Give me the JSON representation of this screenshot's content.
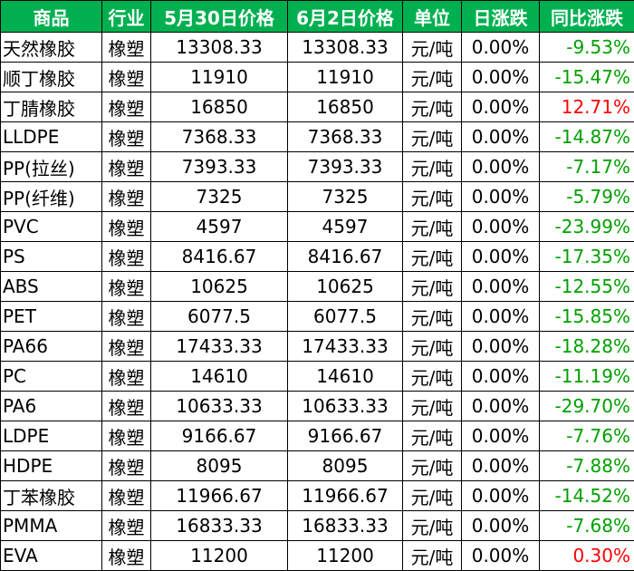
{
  "table": {
    "headers": [
      "商品",
      "行业",
      "5月30日价格",
      "6月2日价格",
      "单位",
      "日涨跌",
      "同比涨跌"
    ],
    "colors": {
      "header_bg": "#00b050",
      "negative": "#00a000",
      "positive": "#ff0000"
    },
    "rows": [
      {
        "name": "天然橡胶",
        "industry": "橡塑",
        "price_0530": "13308.33",
        "price_0602": "13308.33",
        "unit": "元/吨",
        "daily": "0.00%",
        "yoy": "-9.53%",
        "dir": "neg"
      },
      {
        "name": "顺丁橡胶",
        "industry": "橡塑",
        "price_0530": "11910",
        "price_0602": "11910",
        "unit": "元/吨",
        "daily": "0.00%",
        "yoy": "-15.47%",
        "dir": "neg"
      },
      {
        "name": "丁腈橡胶",
        "industry": "橡塑",
        "price_0530": "16850",
        "price_0602": "16850",
        "unit": "元/吨",
        "daily": "0.00%",
        "yoy": "12.71%",
        "dir": "pos"
      },
      {
        "name": "LLDPE",
        "industry": "橡塑",
        "price_0530": "7368.33",
        "price_0602": "7368.33",
        "unit": "元/吨",
        "daily": "0.00%",
        "yoy": "-14.87%",
        "dir": "neg"
      },
      {
        "name": "PP(拉丝)",
        "industry": "橡塑",
        "price_0530": "7393.33",
        "price_0602": "7393.33",
        "unit": "元/吨",
        "daily": "0.00%",
        "yoy": "-7.17%",
        "dir": "neg"
      },
      {
        "name": "PP(纤维)",
        "industry": "橡塑",
        "price_0530": "7325",
        "price_0602": "7325",
        "unit": "元/吨",
        "daily": "0.00%",
        "yoy": "-5.79%",
        "dir": "neg"
      },
      {
        "name": "PVC",
        "industry": "橡塑",
        "price_0530": "4597",
        "price_0602": "4597",
        "unit": "元/吨",
        "daily": "0.00%",
        "yoy": "-23.99%",
        "dir": "neg"
      },
      {
        "name": "PS",
        "industry": "橡塑",
        "price_0530": "8416.67",
        "price_0602": "8416.67",
        "unit": "元/吨",
        "daily": "0.00%",
        "yoy": "-17.35%",
        "dir": "neg"
      },
      {
        "name": "ABS",
        "industry": "橡塑",
        "price_0530": "10625",
        "price_0602": "10625",
        "unit": "元/吨",
        "daily": "0.00%",
        "yoy": "-12.55%",
        "dir": "neg"
      },
      {
        "name": "PET",
        "industry": "橡塑",
        "price_0530": "6077.5",
        "price_0602": "6077.5",
        "unit": "元/吨",
        "daily": "0.00%",
        "yoy": "-15.85%",
        "dir": "neg"
      },
      {
        "name": "PA66",
        "industry": "橡塑",
        "price_0530": "17433.33",
        "price_0602": "17433.33",
        "unit": "元/吨",
        "daily": "0.00%",
        "yoy": "-18.28%",
        "dir": "neg"
      },
      {
        "name": "PC",
        "industry": "橡塑",
        "price_0530": "14610",
        "price_0602": "14610",
        "unit": "元/吨",
        "daily": "0.00%",
        "yoy": "-11.19%",
        "dir": "neg"
      },
      {
        "name": "PA6",
        "industry": "橡塑",
        "price_0530": "10633.33",
        "price_0602": "10633.33",
        "unit": "元/吨",
        "daily": "0.00%",
        "yoy": "-29.70%",
        "dir": "neg"
      },
      {
        "name": "LDPE",
        "industry": "橡塑",
        "price_0530": "9166.67",
        "price_0602": "9166.67",
        "unit": "元/吨",
        "daily": "0.00%",
        "yoy": "-7.76%",
        "dir": "neg"
      },
      {
        "name": "HDPE",
        "industry": "橡塑",
        "price_0530": "8095",
        "price_0602": "8095",
        "unit": "元/吨",
        "daily": "0.00%",
        "yoy": "-7.88%",
        "dir": "neg"
      },
      {
        "name": "丁苯橡胶",
        "industry": "橡塑",
        "price_0530": "11966.67",
        "price_0602": "11966.67",
        "unit": "元/吨",
        "daily": "0.00%",
        "yoy": "-14.52%",
        "dir": "neg"
      },
      {
        "name": "PMMA",
        "industry": "橡塑",
        "price_0530": "16833.33",
        "price_0602": "16833.33",
        "unit": "元/吨",
        "daily": "0.00%",
        "yoy": "-7.68%",
        "dir": "neg"
      },
      {
        "name": "EVA",
        "industry": "橡塑",
        "price_0530": "11200",
        "price_0602": "11200",
        "unit": "元/吨",
        "daily": "0.00%",
        "yoy": "0.30%",
        "dir": "pos"
      }
    ]
  }
}
